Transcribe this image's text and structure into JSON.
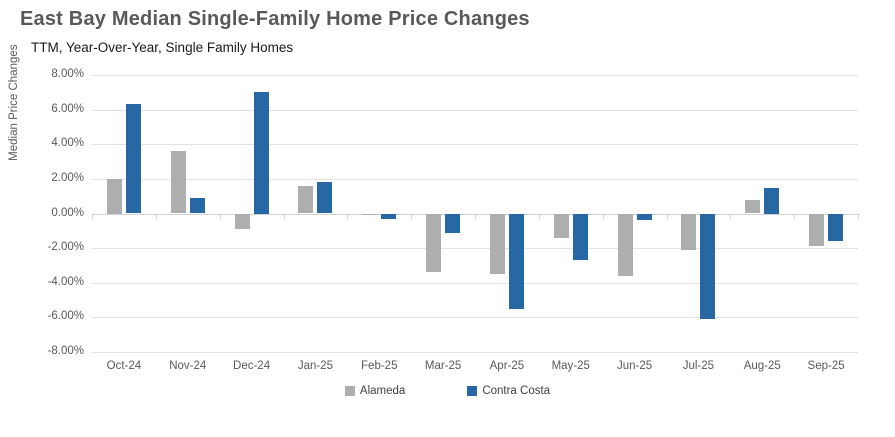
{
  "header": {
    "title": "East Bay Median Single-Family Home Price Changes",
    "subtitle": "TTM, Year-Over-Year, Single Family Homes"
  },
  "colors": {
    "alameda": "#aeaeae",
    "contra_costa": "#2767a3",
    "gridline": "#e2e2e2",
    "zero_line": "#d2d2d2",
    "title_text": "#595959",
    "axis_text": "#595959"
  },
  "chart_data": {
    "type": "bar",
    "title": "East Bay Median Single-Family Home Price Changes",
    "subtitle": "TTM, Year-Over-Year, Single Family Homes",
    "categories": [
      "Oct-24",
      "Nov-24",
      "Dec-24",
      "Jan-25",
      "Feb-25",
      "Mar-25",
      "Apr-25",
      "May-25",
      "Jun-25",
      "Jul-25",
      "Aug-25",
      "Sep-25"
    ],
    "series": [
      {
        "name": "Alameda",
        "color_key": "alameda",
        "values": [
          2.0,
          3.6,
          -0.9,
          1.6,
          -0.1,
          -3.4,
          -3.5,
          -1.4,
          -3.6,
          -2.1,
          0.8,
          -1.9
        ]
      },
      {
        "name": "Contra Costa",
        "color_key": "contra_costa",
        "values": [
          6.3,
          0.9,
          7.0,
          1.8,
          -0.3,
          -1.1,
          -5.5,
          -2.7,
          -0.4,
          -6.1,
          1.5,
          -1.6
        ]
      }
    ],
    "xlabel": "",
    "ylabel": "Median Price Changes",
    "ylim": [
      -8,
      8
    ],
    "ytick_step": 2,
    "ytick_labels": [
      "8.00%",
      "6.00%",
      "4.00%",
      "2.00%",
      "0.00%",
      "-2.00%",
      "-4.00%",
      "-6.00%",
      "-8.00%"
    ],
    "grid": true,
    "legend_position": "bottom"
  }
}
